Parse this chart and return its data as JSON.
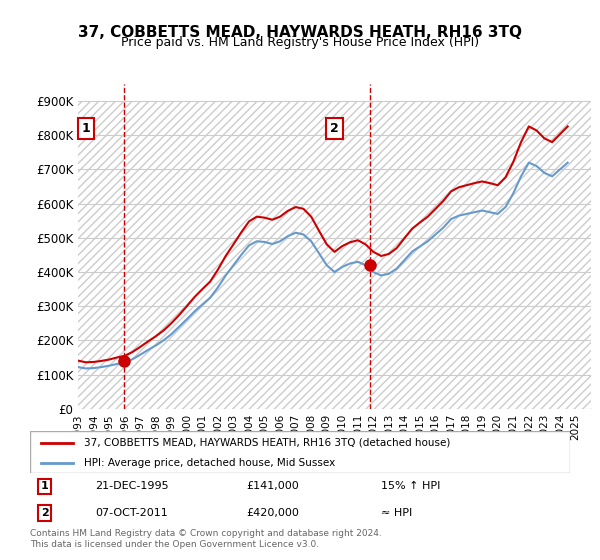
{
  "title": "37, COBBETTS MEAD, HAYWARDS HEATH, RH16 3TQ",
  "subtitle": "Price paid vs. HM Land Registry's House Price Index (HPI)",
  "ylim": [
    0,
    950000
  ],
  "yticks": [
    0,
    100000,
    200000,
    300000,
    400000,
    500000,
    600000,
    700000,
    800000,
    900000
  ],
  "xlim_start": 1993,
  "xlim_end": 2026,
  "legend_line1": "37, COBBETTS MEAD, HAYWARDS HEATH, RH16 3TQ (detached house)",
  "legend_line2": "HPI: Average price, detached house, Mid Sussex",
  "annotation1_label": "1",
  "annotation1_date": "21-DEC-1995",
  "annotation1_price": "£141,000",
  "annotation1_hpi": "15% ↑ HPI",
  "annotation2_label": "2",
  "annotation2_date": "07-OCT-2011",
  "annotation2_price": "£420,000",
  "annotation2_hpi": "≈ HPI",
  "footer": "Contains HM Land Registry data © Crown copyright and database right 2024.\nThis data is licensed under the Open Government Licence v3.0.",
  "sale_color": "#cc0000",
  "hpi_color": "#6699cc",
  "background_color": "#ffffff",
  "hatch_color": "#dddddd",
  "grid_color": "#cccccc",
  "dashed_line_color": "#cc0000",
  "sale_years": [
    1995.97,
    2011.77
  ],
  "sale_prices": [
    141000,
    420000
  ],
  "hpi_years": [
    1993.0,
    1993.5,
    1994.0,
    1994.5,
    1995.0,
    1995.5,
    1996.0,
    1996.5,
    1997.0,
    1997.5,
    1998.0,
    1998.5,
    1999.0,
    1999.5,
    2000.0,
    2000.5,
    2001.0,
    2001.5,
    2002.0,
    2002.5,
    2003.0,
    2003.5,
    2004.0,
    2004.5,
    2005.0,
    2005.5,
    2006.0,
    2006.5,
    2007.0,
    2007.5,
    2008.0,
    2008.5,
    2009.0,
    2009.5,
    2010.0,
    2010.5,
    2011.0,
    2011.5,
    2012.0,
    2012.5,
    2013.0,
    2013.5,
    2014.0,
    2014.5,
    2015.0,
    2015.5,
    2016.0,
    2016.5,
    2017.0,
    2017.5,
    2018.0,
    2018.5,
    2019.0,
    2019.5,
    2020.0,
    2020.5,
    2021.0,
    2021.5,
    2022.0,
    2022.5,
    2023.0,
    2023.5,
    2024.0,
    2024.5
  ],
  "hpi_values": [
    122000,
    118000,
    119000,
    122000,
    126000,
    131000,
    135000,
    145000,
    158000,
    172000,
    185000,
    200000,
    218000,
    240000,
    262000,
    285000,
    305000,
    325000,
    355000,
    390000,
    420000,
    450000,
    478000,
    490000,
    488000,
    482000,
    490000,
    505000,
    515000,
    510000,
    490000,
    455000,
    420000,
    400000,
    415000,
    425000,
    430000,
    420000,
    400000,
    390000,
    395000,
    410000,
    435000,
    460000,
    475000,
    490000,
    510000,
    530000,
    555000,
    565000,
    570000,
    575000,
    580000,
    575000,
    570000,
    590000,
    630000,
    680000,
    720000,
    710000,
    690000,
    680000,
    700000,
    720000
  ],
  "property_years": [
    1993.0,
    1993.5,
    1994.0,
    1994.5,
    1995.0,
    1995.5,
    1996.0,
    1996.5,
    1997.0,
    1997.5,
    1998.0,
    1998.5,
    1999.0,
    1999.5,
    2000.0,
    2000.5,
    2001.0,
    2001.5,
    2002.0,
    2002.5,
    2003.0,
    2003.5,
    2004.0,
    2004.5,
    2005.0,
    2005.5,
    2006.0,
    2006.5,
    2007.0,
    2007.5,
    2008.0,
    2008.5,
    2009.0,
    2009.5,
    2010.0,
    2010.5,
    2011.0,
    2011.5,
    2012.0,
    2012.5,
    2013.0,
    2013.5,
    2014.0,
    2014.5,
    2015.0,
    2015.5,
    2016.0,
    2016.5,
    2017.0,
    2017.5,
    2018.0,
    2018.5,
    2019.0,
    2019.5,
    2020.0,
    2020.5,
    2021.0,
    2021.5,
    2022.0,
    2022.5,
    2023.0,
    2023.5,
    2024.0,
    2024.5
  ],
  "property_values": [
    141000,
    136000,
    137000,
    140000,
    144000,
    150000,
    155000,
    166000,
    181000,
    197000,
    212000,
    229000,
    250000,
    274000,
    300000,
    327000,
    350000,
    372000,
    407000,
    447000,
    481000,
    516000,
    548000,
    562000,
    559000,
    553000,
    562000,
    579000,
    590000,
    585000,
    562000,
    521000,
    481000,
    459000,
    476000,
    487000,
    493000,
    481000,
    459000,
    447000,
    453000,
    470000,
    499000,
    527000,
    545000,
    562000,
    585000,
    608000,
    636000,
    648000,
    654000,
    660000,
    665000,
    660000,
    654000,
    677000,
    722000,
    780000,
    826000,
    814000,
    791000,
    780000,
    803000,
    826000
  ]
}
